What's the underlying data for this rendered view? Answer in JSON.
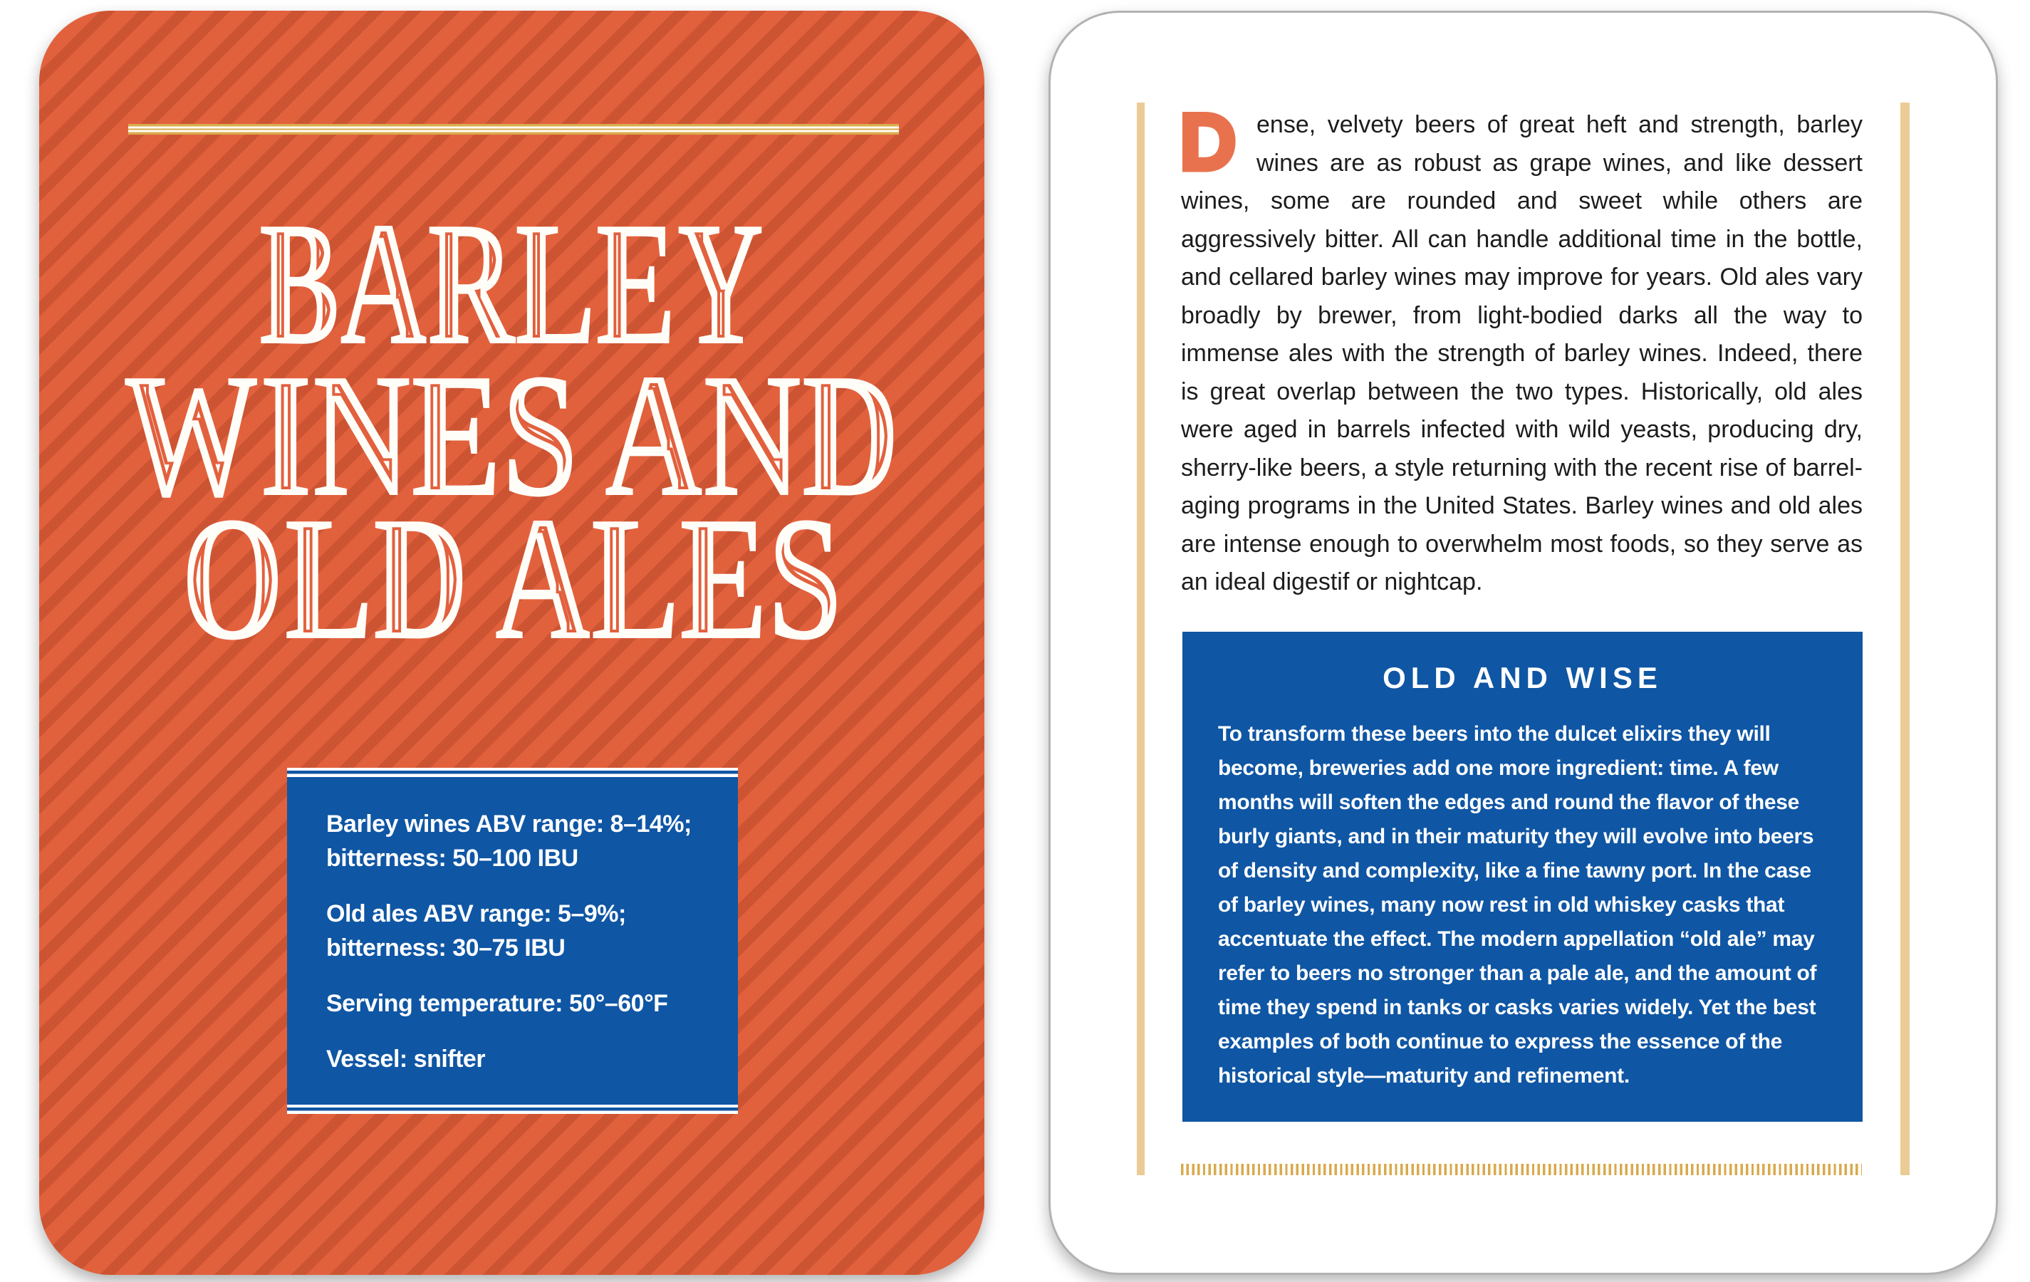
{
  "colors": {
    "card_orange": "#E2613D",
    "stripe_orange": "#CB5836",
    "panel_blue": "#0F56A4",
    "gold": "#D9AC4C",
    "tan_rule": "#ECCC96",
    "drop_cap_orange": "#E8724E"
  },
  "left_card": {
    "title_lines": [
      "BARLEY",
      "WINES AND",
      "OLD ALES"
    ],
    "info_box": {
      "entries": [
        "Barley wines ABV range: 8–14%; bitterness: 50–100 IBU",
        "Old ales ABV range: 5–9%; bitterness: 30–75 IBU",
        "Serving temperature: 50°–60°F",
        "Vessel: snifter"
      ]
    }
  },
  "right_card": {
    "drop_cap": "D",
    "intro_text": "ense, velvety beers of great heft and strength, barley wines are as robust as grape wines, and like dessert wines, some are rounded and sweet while others are aggressively bitter. All can handle additional time in the bottle, and cellared barley wines may improve for years. Old ales vary broadly by brewer, from light-bodied darks all the way to immense ales with the strength of barley wines. Indeed, there is great overlap between the two types. Historically, old ales were aged in barrels infected with wild yeasts, producing dry, sherry-like beers, a style returning with the recent rise of barrel-aging programs in the United States. Barley wines and old ales are intense enough to overwhelm most foods, so they serve as an ideal digestif or nightcap.",
    "callout": {
      "title": "OLD AND WISE",
      "body": "To transform these beers into the dulcet elixirs they will become, breweries add one more ingredient: time. A few months will soften the edges and round the flavor of these burly giants, and in their maturity they will evolve into beers of density and complexity, like a fine tawny port. In the case of barley wines, many now rest in old whiskey casks that accentuate the effect. The modern appellation “old ale” may refer to beers no stronger than a pale ale, and the amount of time they spend in tanks or casks varies widely. Yet the best examples of both continue to express the essence of the historical style—maturity and refinement."
    }
  }
}
